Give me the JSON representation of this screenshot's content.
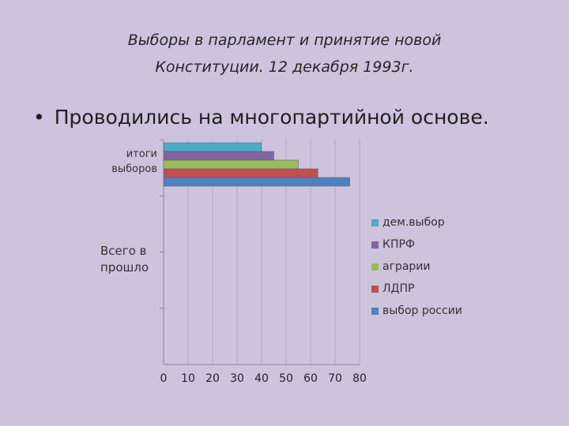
{
  "slide": {
    "title_line1": "Выборы в парламент и принятие новой",
    "title_line2": "Конституции.  12 декабря 1993г.",
    "bullet_symbol": "•",
    "bullet_text": "Проводились на многопартийной основе."
  },
  "chart_data": {
    "type": "bar",
    "orientation": "horizontal",
    "categories": [
      "итоги выборов",
      "Всего в прошло"
    ],
    "series": [
      {
        "name": "дем.выбор",
        "color": "#4bacc6",
        "values": [
          40,
          null
        ]
      },
      {
        "name": "КПРФ",
        "color": "#8064a2",
        "values": [
          45,
          null
        ]
      },
      {
        "name": "аграрии",
        "color": "#9bbb59",
        "values": [
          55,
          null
        ]
      },
      {
        "name": "ЛДПР",
        "color": "#c0504d",
        "values": [
          63,
          null
        ]
      },
      {
        "name": "выбор россии",
        "color": "#4f81bd",
        "values": [
          76,
          null
        ]
      }
    ],
    "xlim": [
      0,
      80
    ],
    "xticks": [
      "0",
      "10",
      "20",
      "30",
      "40",
      "50",
      "60",
      "70",
      "80"
    ],
    "grid": "vertical",
    "legend_position": "right"
  }
}
